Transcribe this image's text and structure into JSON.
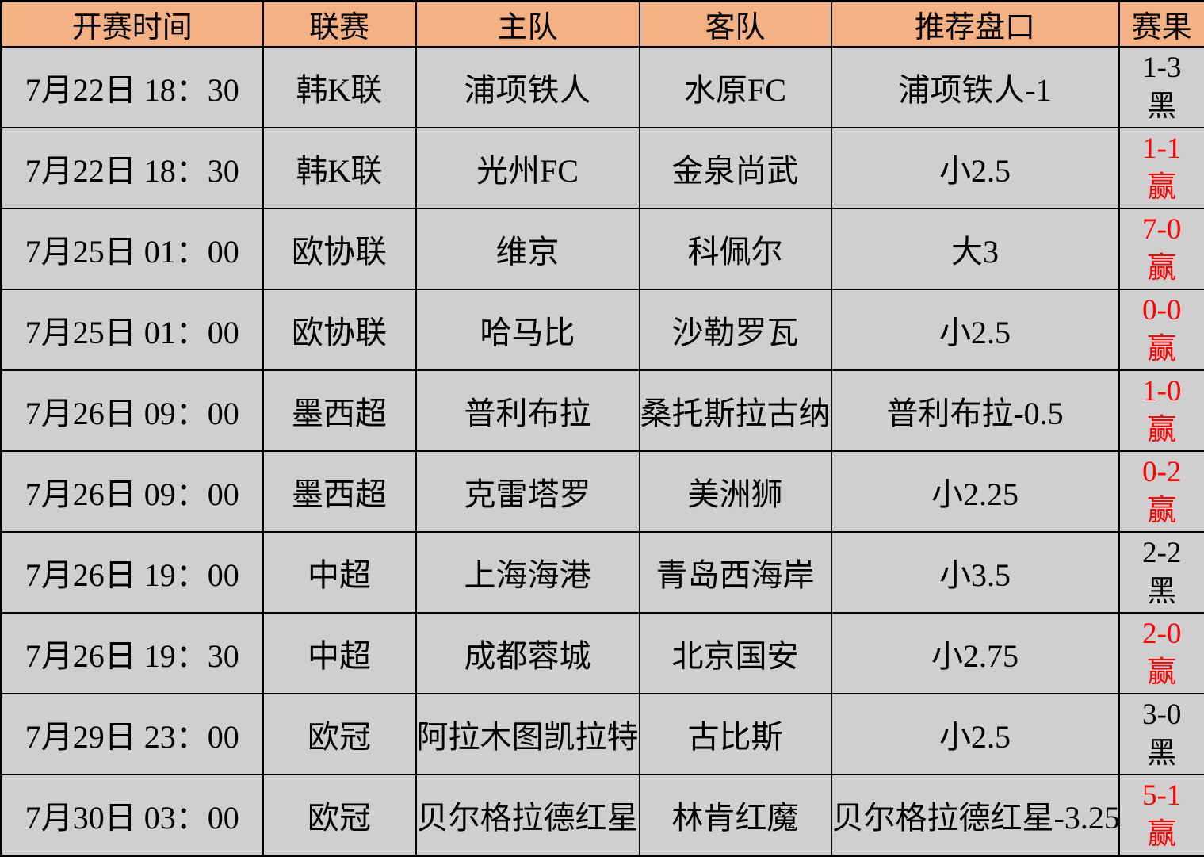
{
  "colors": {
    "header_bg": "#F4B183",
    "body_bg": "#D0CECE",
    "win_text": "#FF0000",
    "default_text": "#000000",
    "border": "#000000"
  },
  "table": {
    "headers": [
      "开赛时间",
      "联赛",
      "主队",
      "客队",
      "推荐盘口",
      "赛果"
    ],
    "rows": [
      {
        "time": "7月22日 18：30",
        "league": "韩K联",
        "home": "浦项铁人",
        "away": "水原FC",
        "handicap": "浦项铁人-1",
        "score": "1-3",
        "outcome": "黑",
        "status": "black"
      },
      {
        "time": "7月22日 18：30",
        "league": "韩K联",
        "home": "光州FC",
        "away": "金泉尚武",
        "handicap": "小2.5",
        "score": "1-1",
        "outcome": "赢",
        "status": "win"
      },
      {
        "time": "7月25日 01：00",
        "league": "欧协联",
        "home": "维京",
        "away": "科佩尔",
        "handicap": "大3",
        "score": "7-0",
        "outcome": "赢",
        "status": "win"
      },
      {
        "time": "7月25日 01：00",
        "league": "欧协联",
        "home": "哈马比",
        "away": "沙勒罗瓦",
        "handicap": "小2.5",
        "score": "0-0",
        "outcome": "赢",
        "status": "win"
      },
      {
        "time": "7月26日 09：00",
        "league": "墨西超",
        "home": "普利布拉",
        "away": "桑托斯拉古纳",
        "handicap": "普利布拉-0.5",
        "score": "1-0",
        "outcome": "赢",
        "status": "win"
      },
      {
        "time": "7月26日 09：00",
        "league": "墨西超",
        "home": "克雷塔罗",
        "away": "美洲狮",
        "handicap": "小2.25",
        "score": "0-2",
        "outcome": "赢",
        "status": "win"
      },
      {
        "time": "7月26日 19：00",
        "league": "中超",
        "home": "上海海港",
        "away": "青岛西海岸",
        "handicap": "小3.5",
        "score": "2-2",
        "outcome": "黑",
        "status": "black"
      },
      {
        "time": "7月26日 19：30",
        "league": "中超",
        "home": "成都蓉城",
        "away": "北京国安",
        "handicap": "小2.75",
        "score": "2-0",
        "outcome": "赢",
        "status": "win"
      },
      {
        "time": "7月29日 23：00",
        "league": "欧冠",
        "home": "阿拉木图凯拉特",
        "away": "古比斯",
        "handicap": "小2.5",
        "score": "3-0",
        "outcome": "黑",
        "status": "black"
      },
      {
        "time": "7月30日 03：00",
        "league": "欧冠",
        "home": "贝尔格拉德红星",
        "away": "林肯红魔",
        "handicap": "贝尔格拉德红星-3.25",
        "score": "5-1",
        "outcome": "赢",
        "status": "win"
      }
    ]
  }
}
